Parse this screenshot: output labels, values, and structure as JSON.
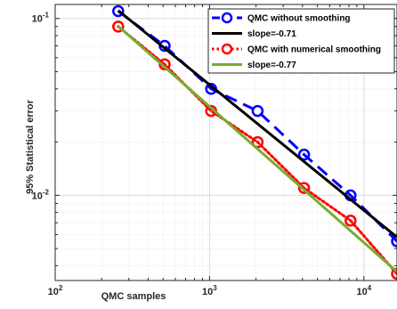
{
  "chart_data": {
    "type": "line",
    "xlabel": "QMC samples",
    "ylabel": "95% Statistical error",
    "xscale": "log",
    "yscale": "log",
    "xlim": [
      100,
      16384
    ],
    "ylim": [
      0.0033,
      0.12
    ],
    "grid": true,
    "minor_grid": true,
    "legend_position": "top-right",
    "x_ticks": [
      {
        "value": 100,
        "base": "10",
        "exp": "2"
      },
      {
        "value": 1000,
        "base": "10",
        "exp": "3"
      },
      {
        "value": 10000,
        "base": "10",
        "exp": "4"
      }
    ],
    "y_ticks": [
      {
        "value": 0.01,
        "base": "10",
        "exp": "-2"
      },
      {
        "value": 0.1,
        "base": "10",
        "exp": "-1"
      }
    ],
    "series": [
      {
        "name": "QMC without smoothing",
        "color": "#0000ff",
        "line_style": "dashed",
        "marker": "circle",
        "x": [
          256,
          512,
          1024,
          2048,
          4096,
          8192,
          16384
        ],
        "y": [
          0.11,
          0.07,
          0.04,
          0.03,
          0.017,
          0.01,
          0.0055
        ]
      },
      {
        "name": "slope=-0.71",
        "color": "#000000",
        "line_style": "solid",
        "marker": "none",
        "x": [
          256,
          16384
        ],
        "y": [
          0.111,
          0.0058
        ]
      },
      {
        "name": "QMC with numerical smoothing",
        "color": "#ff0000",
        "line_style": "dotted",
        "marker": "circle",
        "x": [
          256,
          512,
          1024,
          2048,
          4096,
          8192,
          16384
        ],
        "y": [
          0.09,
          0.055,
          0.03,
          0.02,
          0.011,
          0.0072,
          0.0036
        ]
      },
      {
        "name": "slope=-0.77",
        "color": "#77ac30",
        "line_style": "solid",
        "marker": "none",
        "x": [
          256,
          16384
        ],
        "y": [
          0.0905,
          0.0037
        ]
      }
    ]
  }
}
